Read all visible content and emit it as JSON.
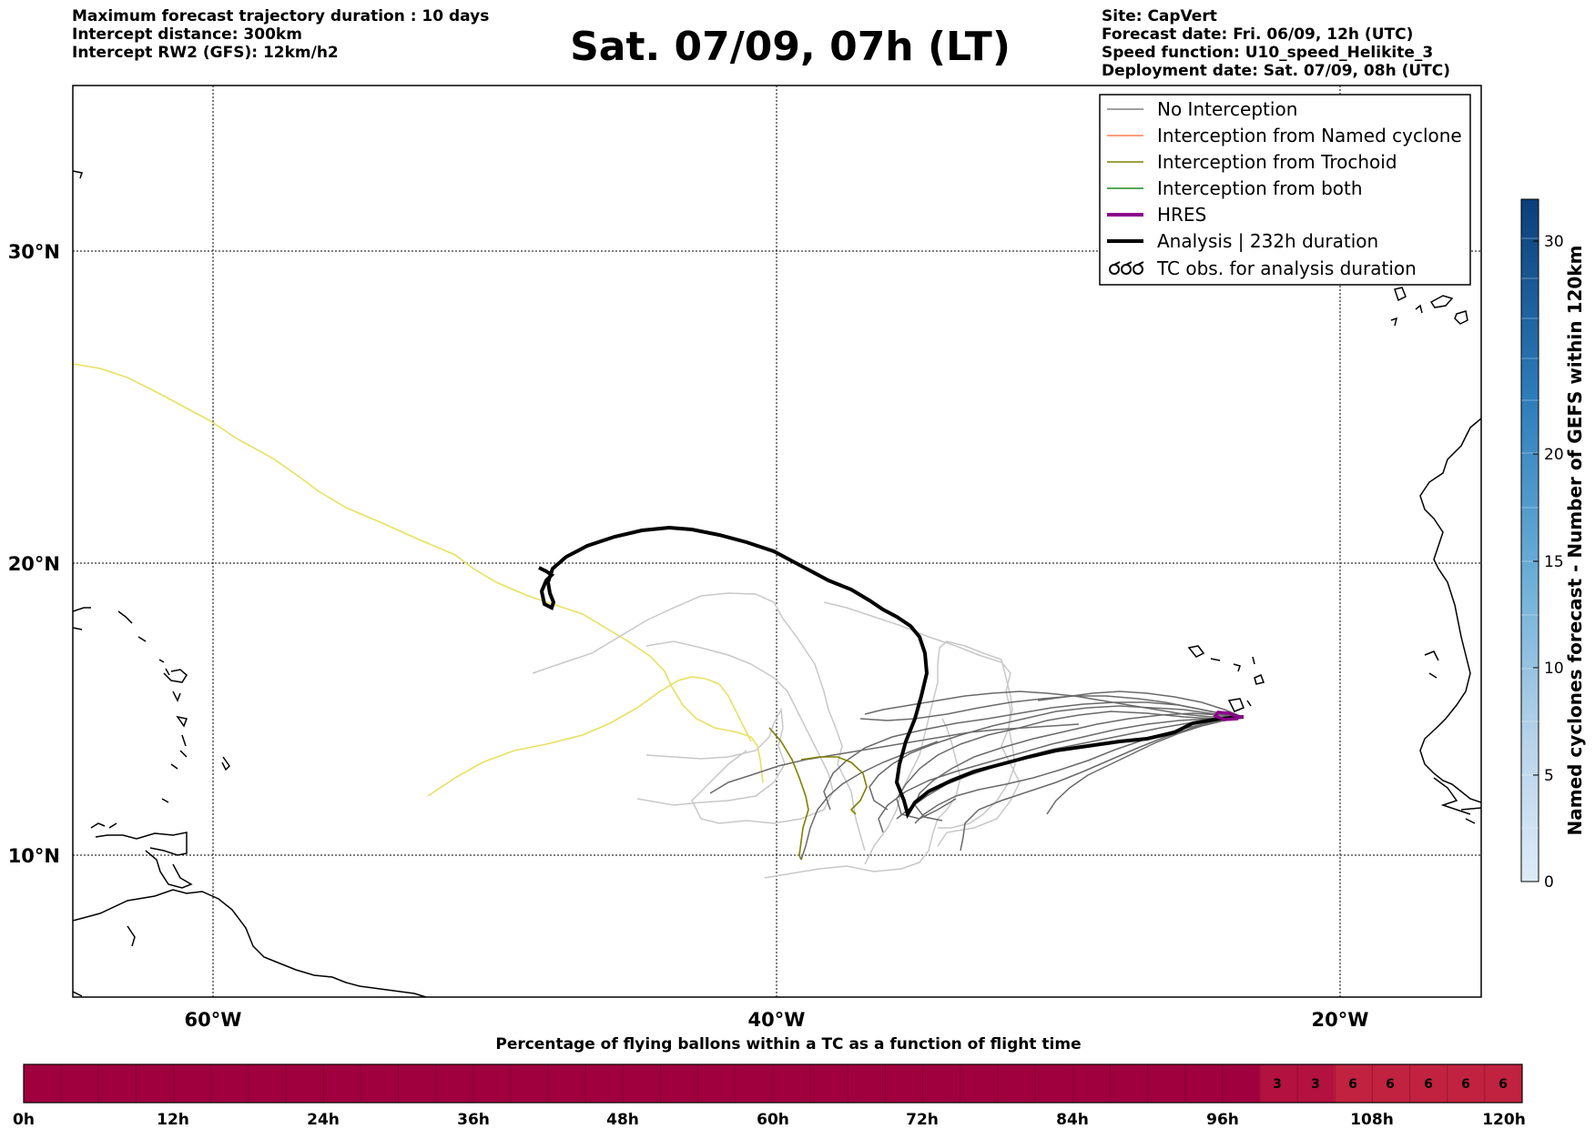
{
  "header": {
    "left_lines": [
      "Maximum forecast trajectory duration : 10 days",
      "Intercept distance: 300km",
      "Intercept RW2 (GFS):  12km/h2"
    ],
    "title": "Sat. 07/09, 07h (LT)",
    "right_lines": [
      "Site: CapVert",
      "Forecast date: Fri. 06/09, 12h (UTC)",
      "Speed function: U10_speed_Helikite_3",
      "Deployment date: Sat. 07/09, 08h (UTC)"
    ]
  },
  "map": {
    "lat_labels": [
      "30°N",
      "20°N",
      "10°N"
    ],
    "lon_labels": [
      "60°W",
      "40°W",
      "20°W"
    ],
    "legend": [
      {
        "label": "No Interception",
        "color": "#808080",
        "style": "line"
      },
      {
        "label": "Interception from Named cyclone",
        "color": "#ff7f50",
        "style": "line"
      },
      {
        "label": "Interception from Trochoid",
        "color": "#808000",
        "style": "line"
      },
      {
        "label": "Interception from both",
        "color": "#228b22",
        "style": "line"
      },
      {
        "label": "HRES",
        "color": "#8b008b",
        "style": "thick"
      },
      {
        "label": "Analysis | 232h duration",
        "color": "#000000",
        "style": "thick"
      },
      {
        "label": "TC obs. for analysis duration",
        "color": "#000000",
        "style": "cyclone"
      }
    ],
    "colors": {
      "analysis": "#000000",
      "hres": "#8b008b",
      "trochoid": "#808000",
      "gfs_yellow": "#e8e060",
      "no_interception": "#666666",
      "no_interception_light": "#c8c8c8"
    }
  },
  "colorbar_right": {
    "label": "Named cyclones forecast - Number of GEFS within 120km",
    "ticks": [
      "30",
      "20",
      "15",
      "10",
      "5",
      "0"
    ]
  },
  "bottom_bar": {
    "title": "Percentage of flying ballons within a TC as a function of flight time",
    "time_labels": [
      "0h",
      "12h",
      "24h",
      "36h",
      "48h",
      "60h",
      "72h",
      "84h",
      "96h",
      "108h",
      "120h"
    ],
    "cell_values": [
      "3",
      "3",
      "6",
      "6",
      "6",
      "6",
      "6"
    ]
  }
}
